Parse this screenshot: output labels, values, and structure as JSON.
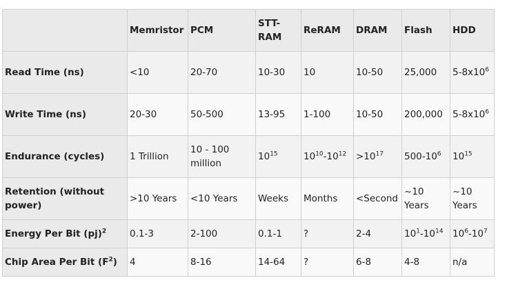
{
  "headers": [
    "",
    "Memristor",
    "PCM",
    "STT-RAM",
    "ReRAM",
    "DRAM",
    "Flash",
    "HDD"
  ],
  "rows": [
    {
      "label": "Read Time (ns)",
      "cells": [
        "<10",
        "20-70",
        "10-30",
        "10",
        "10-50",
        "25,000",
        "5-8x10<sup>6</sup>"
      ]
    },
    {
      "label": "Write Time (ns)",
      "cells": [
        "20-30",
        "50-500",
        "13-95",
        "1-100",
        "10-50",
        "200,000",
        "5-8x10<sup>6</sup>"
      ]
    },
    {
      "label": "Endurance (cycles)",
      "cells": [
        "1 Trillion",
        "10 - 100 million",
        "10<sup>15</sup>",
        "10<sup>10</sup>-10<sup>12</sup>",
        "&gt;10<sup>17</sup>",
        "500-10<sup>6</sup>",
        "10<sup>15</sup>"
      ]
    },
    {
      "label": "Retention (without power)",
      "cells": [
        "&gt;10 Years",
        "&lt;10 Years",
        "Weeks",
        "Months",
        "&lt;Second",
        "~10 Years",
        "~10 Years"
      ]
    },
    {
      "label": "Energy Per Bit (pj)<sup>2</sup>",
      "cells": [
        "0.1-3",
        "2-100",
        "0.1-1",
        "?",
        "2-4",
        "10<sup>1</sup>-10<sup>14</sup>",
        "10<sup>6</sup>-10<sup>7</sup>"
      ]
    },
    {
      "label": "Chip Area Per Bit (F<sup>2</sup>)",
      "cells": [
        "4",
        "8-16",
        "14-64",
        "?",
        "6-8",
        "4-8",
        "n/a"
      ]
    }
  ]
}
